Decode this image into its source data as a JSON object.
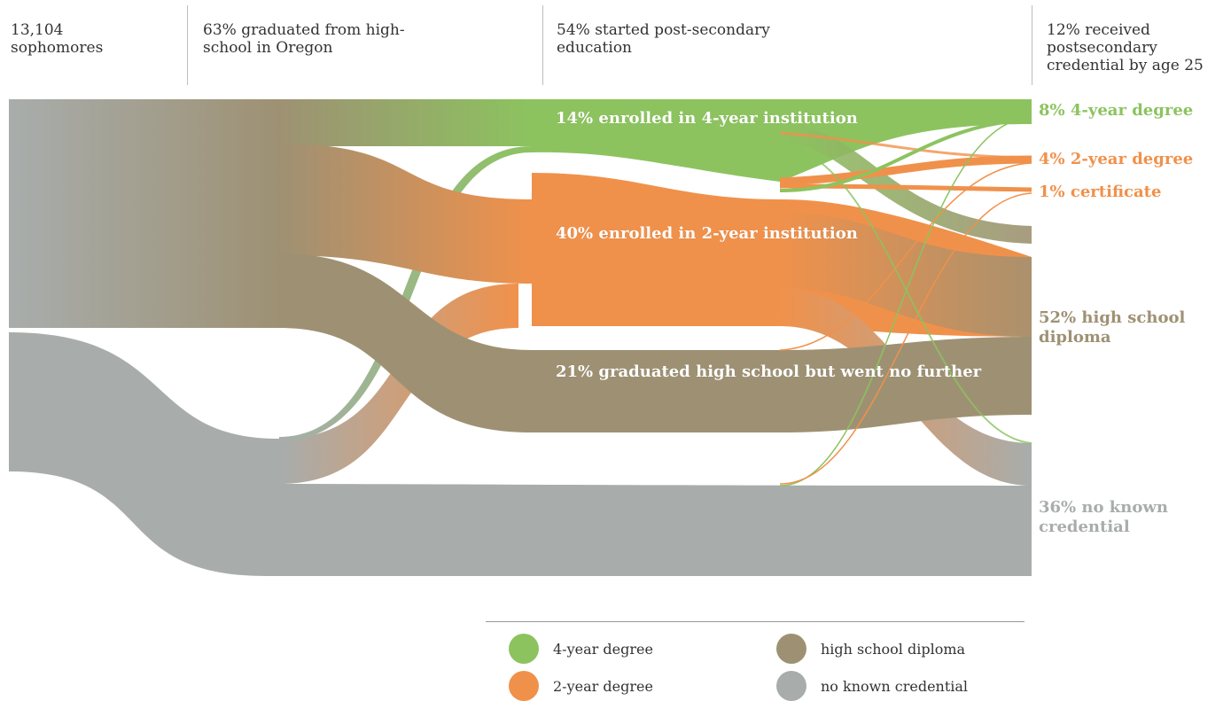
{
  "stages": [
    {
      "label": "13,104\nsophomores"
    },
    {
      "label": "63% graduated from high-\nschool in Oregon"
    },
    {
      "label": "54% started post-secondary\neducation"
    },
    {
      "label": "12% received\npostsecondary\ncredential by age 25"
    }
  ],
  "flow_labels": {
    "four_year": "14% enrolled in 4-year institution",
    "two_year": "40% enrolled in 2-year institution",
    "hs_only": "21% graduated high school but went no further"
  },
  "outcomes": [
    {
      "id": "four_year_degree",
      "label": "8% 4-year degree",
      "color": "#8cc35f"
    },
    {
      "id": "two_year_degree",
      "label": "4% 2-year degree",
      "color": "#f0914b"
    },
    {
      "id": "certificate",
      "label": "1% certificate",
      "color": "#f0914b"
    },
    {
      "id": "hs_diploma",
      "label": "52% high school\ndiploma",
      "color": "#9e9173"
    },
    {
      "id": "no_credential",
      "label": "36% no known\ncredential",
      "color": "#a8adac"
    }
  ],
  "legend": [
    {
      "label": "4-year degree",
      "color": "#8cc35f"
    },
    {
      "label": "high school diploma",
      "color": "#9e9173"
    },
    {
      "label": "2-year degree",
      "color": "#f0914b"
    },
    {
      "label": "no known credential",
      "color": "#a8adac"
    }
  ],
  "colors": {
    "green": "#8cc35f",
    "orange": "#f0914b",
    "brown": "#9e9173",
    "gray": "#a8adac"
  },
  "chart_data": {
    "type": "sankey",
    "nodes": [
      "13,104 sophomores",
      "63% graduated from high-school in Oregon",
      "14% enrolled in 4-year institution",
      "40% enrolled in 2-year institution",
      "21% graduated high school but went no further",
      "8% 4-year degree",
      "4% 2-year degree",
      "1% certificate",
      "52% high school diploma",
      "36% no known credential"
    ]
  }
}
